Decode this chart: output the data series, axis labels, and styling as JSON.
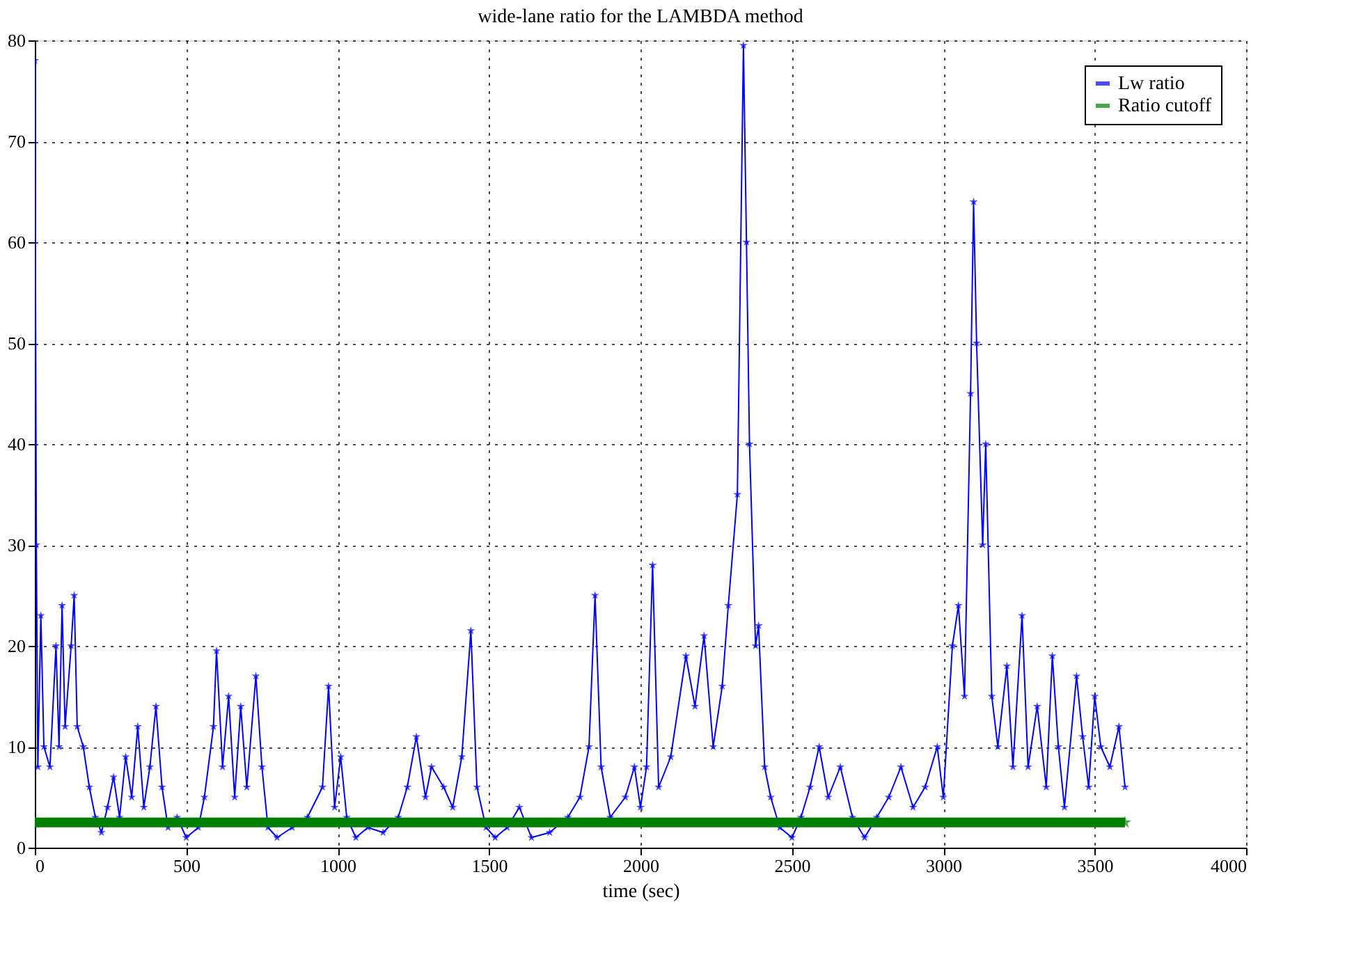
{
  "chart_data": {
    "type": "line",
    "title": "wide-lane ratio for the LAMBDA method",
    "xlabel": "time (sec)",
    "xlim": [
      0,
      4000
    ],
    "xticks": [
      0,
      500,
      1000,
      1500,
      2000,
      2500,
      3000,
      3500,
      4000
    ],
    "ylim": [
      0,
      80
    ],
    "yticks": [
      0,
      10,
      20,
      30,
      40,
      50,
      60,
      70,
      80
    ],
    "grid": true,
    "legend": "top right",
    "marker": "star",
    "line_style": "solid",
    "series": [
      {
        "name": "Lw ratio",
        "color": "#0000ff",
        "x": [
          0,
          5,
          10,
          20,
          30,
          50,
          70,
          80,
          90,
          100,
          120,
          130,
          140,
          160,
          180,
          200,
          220,
          240,
          260,
          280,
          300,
          320,
          340,
          360,
          380,
          400,
          420,
          440,
          470,
          500,
          540,
          560,
          590,
          600,
          620,
          640,
          660,
          680,
          700,
          730,
          750,
          770,
          800,
          850,
          900,
          950,
          970,
          990,
          1010,
          1030,
          1060,
          1100,
          1150,
          1200,
          1230,
          1260,
          1290,
          1310,
          1350,
          1380,
          1410,
          1440,
          1460,
          1490,
          1520,
          1560,
          1600,
          1640,
          1700,
          1760,
          1800,
          1830,
          1850,
          1870,
          1900,
          1950,
          1980,
          2000,
          2020,
          2040,
          2060,
          2100,
          2150,
          2180,
          2210,
          2240,
          2270,
          2290,
          2320,
          2340,
          2350,
          2360,
          2380,
          2390,
          2410,
          2430,
          2460,
          2500,
          2530,
          2560,
          2590,
          2620,
          2660,
          2700,
          2740,
          2780,
          2820,
          2860,
          2900,
          2940,
          2980,
          3000,
          3030,
          3050,
          3070,
          3090,
          3100,
          3110,
          3130,
          3140,
          3160,
          3180,
          3210,
          3230,
          3260,
          3280,
          3310,
          3340,
          3360,
          3380,
          3400,
          3440,
          3460,
          3480,
          3500,
          3520,
          3550,
          3580,
          3600
        ],
        "values": [
          78,
          30,
          8,
          23,
          10,
          8,
          20,
          10,
          24,
          12,
          20,
          25,
          12,
          10,
          6,
          3,
          1.5,
          4,
          7,
          3,
          9,
          5,
          12,
          4,
          8,
          14,
          6,
          2,
          3,
          1,
          2,
          5,
          12,
          19.5,
          8,
          15,
          5,
          14,
          6,
          17,
          8,
          2,
          1,
          2,
          3,
          6,
          16,
          4,
          9,
          3,
          1,
          2,
          1.5,
          3,
          6,
          11,
          5,
          8,
          6,
          4,
          9,
          21.5,
          6,
          2,
          1,
          2,
          4,
          1,
          1.5,
          3,
          5,
          10,
          25,
          8,
          3,
          5,
          8,
          4,
          8,
          28,
          6,
          9,
          19,
          14,
          21,
          10,
          16,
          24,
          35,
          79.5,
          60,
          40,
          20,
          22,
          8,
          5,
          2,
          1,
          3,
          6,
          10,
          5,
          8,
          3,
          1,
          3,
          5,
          8,
          4,
          6,
          10,
          5,
          20,
          24,
          15,
          45,
          64,
          50,
          30,
          40,
          15,
          10,
          18,
          8,
          23,
          8,
          14,
          6,
          19,
          10,
          4,
          17,
          11,
          6,
          15,
          10,
          8,
          12,
          6
        ]
      },
      {
        "name": "Ratio cutoff",
        "color": "#008000",
        "x": [
          0,
          3600
        ],
        "values": [
          2.5,
          2.5
        ]
      }
    ]
  }
}
